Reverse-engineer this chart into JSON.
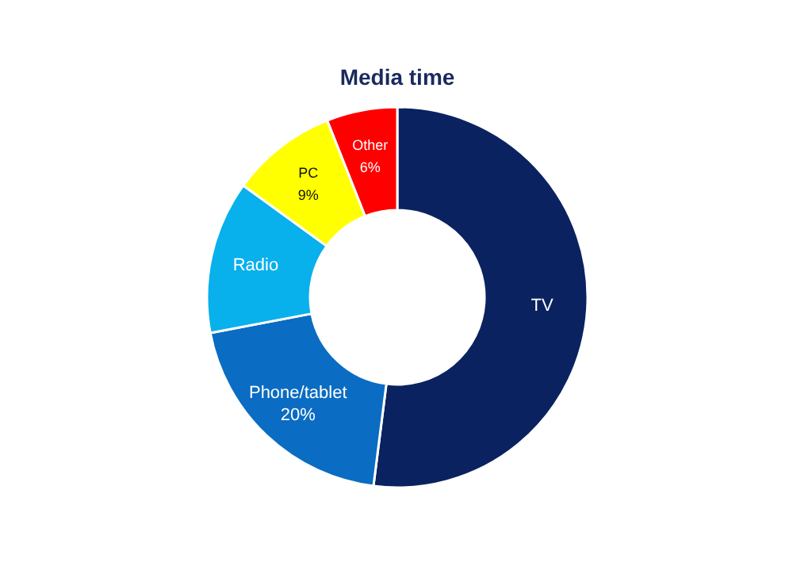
{
  "chart_data": {
    "type": "donut",
    "title": "Media time",
    "categories": [
      "TV",
      "Phone/tablet",
      "Radio",
      "PC",
      "Other"
    ],
    "values": [
      52,
      20,
      13,
      9,
      6
    ],
    "value_labels": [
      null,
      "20%",
      null,
      "9%",
      "6%"
    ],
    "colors": [
      "#0b2260",
      "#0a6cc2",
      "#08b0ec",
      "#ffff00",
      "#ff0000"
    ]
  }
}
